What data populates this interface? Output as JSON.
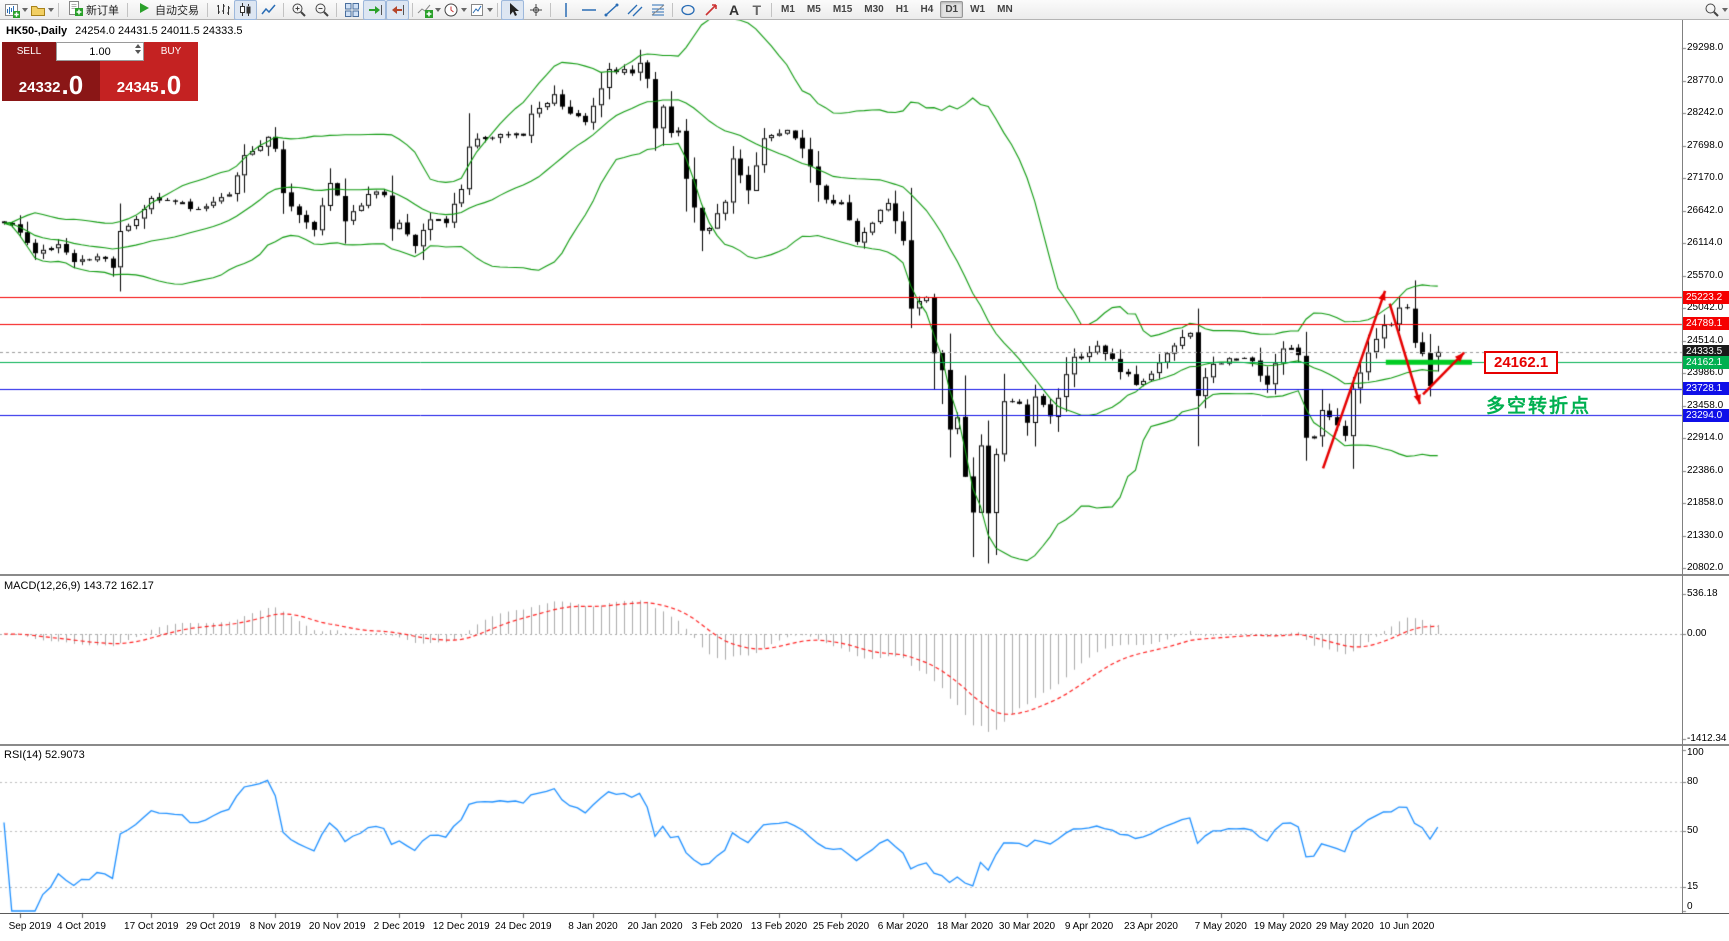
{
  "window": {
    "symbol_period": "HK50-,Daily",
    "ohlc": "24254.0 24431.5 24011.5 24333.5"
  },
  "toolbar": {
    "items": [
      {
        "type": "icon",
        "name": "new-chart-icon",
        "caret": true
      },
      {
        "type": "icon",
        "name": "profiles-icon",
        "caret": true
      },
      {
        "type": "sep"
      },
      {
        "type": "button",
        "name": "new-order-button",
        "icon": "new-order-icon",
        "label": "新订单"
      },
      {
        "type": "sep"
      },
      {
        "type": "button",
        "name": "autotrade-button",
        "icon": "autotrade-icon",
        "label": "自动交易"
      },
      {
        "type": "sep"
      },
      {
        "type": "icon",
        "name": "bar-chart-icon"
      },
      {
        "type": "icon",
        "name": "candlestick-chart-icon",
        "active": true
      },
      {
        "type": "icon",
        "name": "line-chart-icon"
      },
      {
        "type": "sep"
      },
      {
        "type": "icon",
        "name": "zoom-in-icon"
      },
      {
        "type": "icon",
        "name": "zoom-out-icon"
      },
      {
        "type": "sep"
      },
      {
        "type": "icon",
        "name": "tile-windows-icon"
      },
      {
        "type": "icon",
        "name": "auto-scroll-icon",
        "active": true
      },
      {
        "type": "icon",
        "name": "chart-shift-icon",
        "active": true
      },
      {
        "type": "sep"
      },
      {
        "type": "icon",
        "name": "indicators-icon",
        "caret": true
      },
      {
        "type": "icon",
        "name": "periods-icon",
        "caret": true
      },
      {
        "type": "icon",
        "name": "templates-icon",
        "caret": true
      },
      {
        "type": "sep"
      },
      {
        "type": "icon",
        "name": "cursor-icon",
        "active": true
      },
      {
        "type": "icon",
        "name": "crosshair-icon"
      },
      {
        "type": "sep"
      },
      {
        "type": "icon",
        "name": "vertical-line-icon"
      },
      {
        "type": "icon",
        "name": "horizontal-line-icon"
      },
      {
        "type": "icon",
        "name": "trendline-icon"
      },
      {
        "type": "icon",
        "name": "channel-icon"
      },
      {
        "type": "icon",
        "name": "fibonacci-icon"
      },
      {
        "type": "sep"
      },
      {
        "type": "icon",
        "name": "shapes-icon"
      },
      {
        "type": "icon",
        "name": "arrows-icon"
      },
      {
        "type": "icon",
        "name": "text-icon"
      },
      {
        "type": "icon",
        "name": "text-label-icon"
      },
      {
        "type": "sep"
      },
      {
        "type": "tf",
        "label": "M1"
      },
      {
        "type": "tf",
        "label": "M5"
      },
      {
        "type": "tf",
        "label": "M15"
      },
      {
        "type": "tf",
        "label": "M30"
      },
      {
        "type": "tf",
        "label": "H1"
      },
      {
        "type": "tf",
        "label": "H4"
      },
      {
        "type": "tf",
        "label": "D1",
        "active": true
      },
      {
        "type": "tf",
        "label": "W1"
      },
      {
        "type": "tf",
        "label": "MN"
      },
      {
        "type": "spacer"
      },
      {
        "type": "icon",
        "name": "search-icon",
        "caret": true
      }
    ]
  },
  "trade_panel": {
    "sell_label": "SELL",
    "buy_label": "BUY",
    "volume": "1.00",
    "sell_price_main": "24332",
    "sell_price_frac": ".0",
    "buy_price_main": "24345",
    "buy_price_frac": ".0",
    "sell_color": "#8a1616",
    "buy_color": "#c42222"
  },
  "indicators": {
    "macd_label": "MACD(12,26,9) 143.72 162.17",
    "rsi_label": "RSI(14) 52.9073"
  },
  "annotations": {
    "support_label": "24162.1",
    "support_color": "#e60000",
    "pivot_text": "多空转折点",
    "pivot_color": "#00b050"
  },
  "chart_data": {
    "type": "candlestick",
    "symbol": "HK50",
    "period": "Daily",
    "ohlc_current": {
      "open": 24254.0,
      "high": 24431.5,
      "low": 24011.5,
      "close": 24333.5
    },
    "y_axis_labels": [
      "29298.0",
      "28770.0",
      "28242.0",
      "27698.0",
      "27170.0",
      "26642.0",
      "26114.0",
      "25570.0",
      "25042.0",
      "24514.0",
      "23986.0",
      "23458.0",
      "22914.0",
      "22386.0",
      "21858.0",
      "21330.0",
      "20802.0"
    ],
    "x_labels": [
      {
        "day": 2,
        "text": "Sep 2019"
      },
      {
        "day": 10,
        "text": "4 Oct 2019"
      },
      {
        "day": 19,
        "text": "17 Oct 2019"
      },
      {
        "day": 27,
        "text": "29 Oct 2019"
      },
      {
        "day": 35,
        "text": "8 Nov 2019"
      },
      {
        "day": 43,
        "text": "20 Nov 2019"
      },
      {
        "day": 51,
        "text": "2 Dec 2019"
      },
      {
        "day": 59,
        "text": "12 Dec 2019"
      },
      {
        "day": 67,
        "text": "24 Dec 2019"
      },
      {
        "day": 76,
        "text": "8 Jan 2020"
      },
      {
        "day": 84,
        "text": "20 Jan 2020"
      },
      {
        "day": 92,
        "text": "3 Feb 2020"
      },
      {
        "day": 100,
        "text": "13 Feb 2020"
      },
      {
        "day": 108,
        "text": "25 Feb 2020"
      },
      {
        "day": 116,
        "text": "6 Mar 2020"
      },
      {
        "day": 124,
        "text": "18 Mar 2020"
      },
      {
        "day": 132,
        "text": "30 Mar 2020"
      },
      {
        "day": 140,
        "text": "9 Apr 2020"
      },
      {
        "day": 148,
        "text": "23 Apr 2020"
      },
      {
        "day": 157,
        "text": "7 May 2020"
      },
      {
        "day": 165,
        "text": "19 May 2020"
      },
      {
        "day": 173,
        "text": "29 May 2020"
      },
      {
        "day": 181,
        "text": "10 Jun 2020"
      }
    ],
    "price_anchors": [
      [
        0,
        26435
      ],
      [
        2,
        26281
      ],
      [
        4,
        25945
      ],
      [
        7,
        26092
      ],
      [
        9,
        25801
      ],
      [
        12,
        25893
      ],
      [
        14,
        25707
      ],
      [
        15,
        26308
      ],
      [
        17,
        26503
      ],
      [
        19,
        26848
      ],
      [
        22,
        26786
      ],
      [
        25,
        26667
      ],
      [
        27,
        26787
      ],
      [
        29,
        26906
      ],
      [
        31,
        27547
      ],
      [
        34,
        27847
      ],
      [
        35,
        27651
      ],
      [
        36,
        26927
      ],
      [
        38,
        26571
      ],
      [
        40,
        26327
      ],
      [
        42,
        27093
      ],
      [
        43,
        26889
      ],
      [
        44,
        26466
      ],
      [
        47,
        26913
      ],
      [
        49,
        26893
      ],
      [
        50,
        26346
      ],
      [
        51,
        26444
      ],
      [
        53,
        26062
      ],
      [
        55,
        26498
      ],
      [
        57,
        26436
      ],
      [
        59,
        26994
      ],
      [
        60,
        27687
      ],
      [
        62,
        27843
      ],
      [
        65,
        27871
      ],
      [
        67,
        27864
      ],
      [
        68,
        28225
      ],
      [
        69,
        28319
      ],
      [
        71,
        28543
      ],
      [
        73,
        28226
      ],
      [
        75,
        28087
      ],
      [
        77,
        28638
      ],
      [
        78,
        28954
      ],
      [
        81,
        28883
      ],
      [
        82,
        29056
      ],
      [
        83,
        28795
      ],
      [
        84,
        27985
      ],
      [
        85,
        28341
      ],
      [
        86,
        27909
      ],
      [
        87,
        27949
      ],
      [
        88,
        27161
      ],
      [
        90,
        26313
      ],
      [
        91,
        26357
      ],
      [
        93,
        26786
      ],
      [
        94,
        27494
      ],
      [
        96,
        26972
      ],
      [
        98,
        27823
      ],
      [
        101,
        27960
      ],
      [
        103,
        27655
      ],
      [
        106,
        26820
      ],
      [
        108,
        26778
      ],
      [
        110,
        26130
      ],
      [
        111,
        26292
      ],
      [
        114,
        26767
      ],
      [
        116,
        26147
      ],
      [
        117,
        25040
      ],
      [
        119,
        25231
      ],
      [
        120,
        24309
      ],
      [
        121,
        24033
      ],
      [
        122,
        23064
      ],
      [
        123,
        23264
      ],
      [
        124,
        22292
      ],
      [
        125,
        21709
      ],
      [
        126,
        22805
      ],
      [
        127,
        21696
      ],
      [
        128,
        22663
      ],
      [
        129,
        23527
      ],
      [
        131,
        23484
      ],
      [
        132,
        23175
      ],
      [
        133,
        23603
      ],
      [
        135,
        23280
      ],
      [
        138,
        24253
      ],
      [
        141,
        24435
      ],
      [
        146,
        23793
      ],
      [
        148,
        23977
      ],
      [
        152,
        24575
      ],
      [
        153,
        24643
      ],
      [
        154,
        23613
      ],
      [
        156,
        24137
      ],
      [
        158,
        24230
      ],
      [
        161,
        24180
      ],
      [
        163,
        23797
      ],
      [
        165,
        24388
      ],
      [
        166,
        24399
      ],
      [
        167,
        24280
      ],
      [
        168,
        22930
      ],
      [
        169,
        22952
      ],
      [
        170,
        23384
      ],
      [
        172,
        23133
      ],
      [
        173,
        22961
      ],
      [
        174,
        23732
      ],
      [
        175,
        23996
      ],
      [
        176,
        24325
      ],
      [
        178,
        24770
      ],
      [
        179,
        24776
      ],
      [
        180,
        25057
      ],
      [
        181,
        25049
      ],
      [
        182,
        24480
      ],
      [
        183,
        24301
      ],
      [
        184,
        23776
      ],
      [
        185,
        24333.5
      ]
    ],
    "high_overrides": [
      [
        82,
        29270
      ],
      [
        180,
        25244
      ]
    ],
    "low_overrides": [
      [
        121,
        23480
      ],
      [
        125,
        20980
      ],
      [
        168,
        22555
      ],
      [
        184,
        23605
      ]
    ],
    "bollinger": {
      "period": 20,
      "deviation": 2
    },
    "horizontal_lines": [
      {
        "price": 25223.2,
        "label": "25223.2",
        "color": "#f50000",
        "type": "resistance"
      },
      {
        "price": 24789.1,
        "label": "24789.1",
        "color": "#f50000",
        "type": "resistance"
      },
      {
        "price": 24333.5,
        "label": "24333.5",
        "color": "#1a1a1a",
        "type": "current"
      },
      {
        "price": 24162.1,
        "label": "24162.1",
        "color": "#00b050",
        "type": "support"
      },
      {
        "price": 23728.1,
        "label": "23728.1",
        "color": "#0f0fe8",
        "type": "support"
      },
      {
        "price": 23294.0,
        "label": "23294.0",
        "color": "#0f0fe8",
        "type": "support"
      }
    ],
    "support_segment": {
      "from_day": 178.3,
      "to_day": 189.4,
      "price": 24162.1,
      "color": "#00cc22"
    },
    "zigzag": [
      {
        "from": [
          170.2,
          22430
        ],
        "to": [
          178.2,
          25330
        ]
      },
      {
        "from": [
          178.8,
          25120
        ],
        "to": [
          182.7,
          23480
        ]
      },
      {
        "from": [
          183.1,
          23640
        ],
        "to": [
          188.4,
          24320
        ]
      }
    ],
    "macd_axis": [
      {
        "value": 536.18,
        "text": "536.18"
      },
      {
        "value": 0,
        "text": "0.00"
      },
      {
        "value": -1412.34,
        "text": "-1412.34"
      }
    ],
    "rsi_axis": [
      {
        "value": 100,
        "text": "100"
      },
      {
        "value": 80,
        "text": "80"
      },
      {
        "value": 50,
        "text": "50"
      },
      {
        "value": 15,
        "text": "15"
      },
      {
        "value": 0,
        "text": "0"
      }
    ],
    "style": {
      "bull": "#ffffff",
      "bear": "#000000",
      "outline": "#000000",
      "bollinger": "#0f9b0f",
      "macd_hist": "#ababab",
      "macd_signal": "#ff2222",
      "rsi": "#1e90ff",
      "zigzag": "#e60000"
    }
  }
}
